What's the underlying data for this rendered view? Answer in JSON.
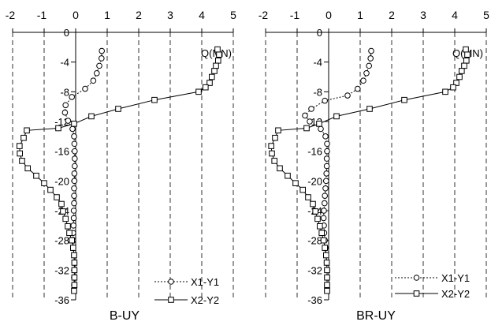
{
  "chart_data": [
    {
      "type": "line",
      "title": "B-UY",
      "value_label": "Q(MN)",
      "value_axis": {
        "range": [
          -2,
          5
        ],
        "ticks": [
          -2,
          -1,
          0,
          1,
          2,
          3,
          4,
          5
        ],
        "labels": [
          "-2",
          "-1",
          "0",
          "1",
          "2",
          "3",
          "4",
          "5"
        ],
        "position": "top"
      },
      "depth_axis": {
        "range": [
          0,
          -36
        ],
        "ticks": [
          0,
          -4,
          -8,
          -12,
          -16,
          -20,
          -24,
          -28,
          -32,
          -36
        ],
        "labels": [
          "0",
          "-4",
          "-8",
          "-12",
          "-16",
          "-20",
          "-24",
          "-28",
          "-32",
          "-36"
        ]
      },
      "grid": "vertical dashed",
      "legend_position": "bottom-right",
      "series": [
        {
          "name": "X1-Y1",
          "line_style": "dotted",
          "marker": "circle",
          "points": [
            [
              0.83,
              -2.5
            ],
            [
              0.82,
              -3.5
            ],
            [
              0.75,
              -4.5
            ],
            [
              0.67,
              -5.5
            ],
            [
              0.56,
              -6.5
            ],
            [
              0.3,
              -7.6
            ],
            [
              -0.12,
              -8.7
            ],
            [
              -0.32,
              -9.8
            ],
            [
              -0.34,
              -10.8
            ],
            [
              -0.24,
              -11.9
            ],
            [
              -0.1,
              -13
            ],
            [
              -0.05,
              -14
            ],
            [
              -0.04,
              -15
            ],
            [
              -0.03,
              -16
            ],
            [
              -0.03,
              -17
            ],
            [
              -0.03,
              -18
            ],
            [
              -0.04,
              -19
            ],
            [
              -0.04,
              -20
            ],
            [
              -0.05,
              -21
            ],
            [
              -0.05,
              -22
            ],
            [
              -0.05,
              -23
            ],
            [
              -0.06,
              -24
            ],
            [
              -0.06,
              -25
            ],
            [
              -0.07,
              -26
            ],
            [
              -0.08,
              -27
            ],
            [
              -0.08,
              -28
            ],
            [
              -0.08,
              -29
            ],
            [
              -0.05,
              -30
            ],
            [
              -0.04,
              -31
            ],
            [
              -0.04,
              -32
            ],
            [
              -0.05,
              -33
            ],
            [
              -0.05,
              -34
            ],
            [
              -0.05,
              -34.8
            ]
          ]
        },
        {
          "name": "X2-Y2",
          "line_style": "solid",
          "marker": "square",
          "points": [
            [
              4.5,
              -2.3
            ],
            [
              4.55,
              -3
            ],
            [
              4.52,
              -3.8
            ],
            [
              4.45,
              -4.5
            ],
            [
              4.4,
              -5.2
            ],
            [
              4.32,
              -6
            ],
            [
              4.25,
              -6.8
            ],
            [
              4.12,
              -7.4
            ],
            [
              3.9,
              -8
            ],
            [
              2.5,
              -9.1
            ],
            [
              1.35,
              -10.3
            ],
            [
              0.5,
              -11.3
            ],
            [
              -0.05,
              -12.3
            ],
            [
              -0.55,
              -12.9
            ],
            [
              -1.55,
              -13.2
            ],
            [
              -1.65,
              -14.2
            ],
            [
              -1.78,
              -15.3
            ],
            [
              -1.77,
              -16.3
            ],
            [
              -1.7,
              -17.3
            ],
            [
              -1.52,
              -18.3
            ],
            [
              -1.25,
              -19.3
            ],
            [
              -1.0,
              -20.3
            ],
            [
              -0.8,
              -21.2
            ],
            [
              -0.6,
              -22.2
            ],
            [
              -0.45,
              -23.1
            ],
            [
              -0.4,
              -24.1
            ],
            [
              -0.32,
              -25.1
            ],
            [
              -0.25,
              -26.1
            ],
            [
              -0.2,
              -27
            ],
            [
              -0.12,
              -28
            ],
            [
              -0.08,
              -29
            ],
            [
              -0.05,
              -30
            ],
            [
              -0.04,
              -31
            ],
            [
              -0.04,
              -32
            ],
            [
              -0.04,
              -33
            ],
            [
              -0.04,
              -34
            ],
            [
              -0.05,
              -34.8
            ]
          ]
        }
      ]
    },
    {
      "type": "line",
      "title": "BR-UY",
      "value_label": "Q(MN)",
      "value_axis": {
        "range": [
          -2,
          5
        ],
        "ticks": [
          -2,
          -1,
          0,
          1,
          2,
          3,
          4,
          5
        ],
        "labels": [
          "-2",
          "-1",
          "0",
          "1",
          "2",
          "3",
          "4",
          "5"
        ],
        "position": "top"
      },
      "depth_axis": {
        "range": [
          0,
          -36
        ],
        "ticks": [
          0,
          -4,
          -8,
          -12,
          -16,
          -20,
          -24,
          -28,
          -32,
          -36
        ],
        "labels": [
          "0",
          "-4",
          "-8",
          "-12",
          "-16",
          "-20",
          "-24",
          "-28",
          "-32",
          "-36"
        ]
      },
      "grid": "vertical dashed",
      "legend_position": "bottom-right",
      "series": [
        {
          "name": "X1-Y1",
          "line_style": "dotted",
          "marker": "circle",
          "points": [
            [
              1.35,
              -2.5
            ],
            [
              1.33,
              -3.5
            ],
            [
              1.28,
              -4.5
            ],
            [
              1.2,
              -5.5
            ],
            [
              1.1,
              -6.5
            ],
            [
              0.92,
              -7.6
            ],
            [
              0.6,
              -8.5
            ],
            [
              -0.12,
              -9.2
            ],
            [
              -0.55,
              -10.3
            ],
            [
              -0.75,
              -11.2
            ],
            [
              -0.6,
              -12
            ],
            [
              -0.25,
              -13
            ],
            [
              -0.1,
              -14
            ],
            [
              -0.05,
              -15
            ],
            [
              -0.05,
              -16
            ],
            [
              -0.06,
              -17
            ],
            [
              -0.06,
              -18
            ],
            [
              -0.07,
              -19
            ],
            [
              -0.08,
              -20
            ],
            [
              -0.1,
              -21
            ],
            [
              -0.12,
              -22
            ],
            [
              -0.13,
              -23
            ],
            [
              -0.15,
              -24
            ],
            [
              -0.16,
              -25
            ],
            [
              -0.15,
              -26
            ],
            [
              -0.14,
              -27
            ],
            [
              -0.12,
              -28
            ],
            [
              -0.1,
              -29
            ],
            [
              -0.08,
              -30
            ],
            [
              -0.06,
              -31
            ],
            [
              -0.05,
              -32
            ],
            [
              -0.05,
              -33
            ],
            [
              -0.05,
              -34
            ],
            [
              -0.05,
              -34.8
            ]
          ]
        },
        {
          "name": "X2-Y2",
          "line_style": "solid",
          "marker": "square",
          "points": [
            [
              4.35,
              -2.3
            ],
            [
              4.4,
              -3
            ],
            [
              4.37,
              -3.8
            ],
            [
              4.3,
              -4.5
            ],
            [
              4.22,
              -5.2
            ],
            [
              4.15,
              -6
            ],
            [
              4.05,
              -6.8
            ],
            [
              3.95,
              -7.4
            ],
            [
              3.7,
              -8
            ],
            [
              2.4,
              -9.1
            ],
            [
              1.3,
              -10.3
            ],
            [
              0.25,
              -11.3
            ],
            [
              -0.3,
              -12.3
            ],
            [
              -0.7,
              -12.9
            ],
            [
              -1.6,
              -13.2
            ],
            [
              -1.7,
              -14.2
            ],
            [
              -1.82,
              -15.3
            ],
            [
              -1.8,
              -16.3
            ],
            [
              -1.72,
              -17.3
            ],
            [
              -1.55,
              -18.3
            ],
            [
              -1.3,
              -19.3
            ],
            [
              -1.05,
              -20.3
            ],
            [
              -0.82,
              -21.2
            ],
            [
              -0.65,
              -22.2
            ],
            [
              -0.5,
              -23.1
            ],
            [
              -0.42,
              -24.1
            ],
            [
              -0.35,
              -25.1
            ],
            [
              -0.28,
              -26.1
            ],
            [
              -0.22,
              -27
            ],
            [
              -0.16,
              -28
            ],
            [
              -0.12,
              -29
            ],
            [
              -0.08,
              -30
            ],
            [
              -0.06,
              -31
            ],
            [
              -0.05,
              -32
            ],
            [
              -0.05,
              -33
            ],
            [
              -0.05,
              -34
            ],
            [
              -0.05,
              -34.8
            ]
          ]
        }
      ]
    }
  ]
}
